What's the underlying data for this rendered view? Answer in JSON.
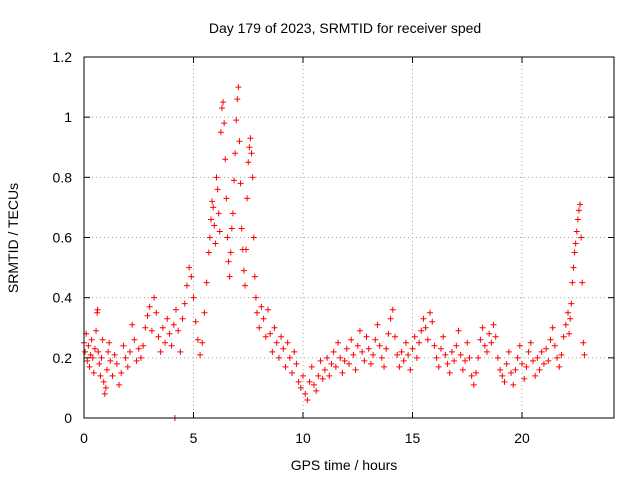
{
  "chart_data": {
    "type": "scatter",
    "title": "Day 179 of 2023, SRMTID for receiver sped",
    "xlabel": "GPS time / hours",
    "ylabel": "SRMTID / TECUs",
    "xlim": [
      0,
      24.2
    ],
    "ylim": [
      0,
      1.2
    ],
    "xticks": [
      0,
      5,
      10,
      15,
      20
    ],
    "xtick_labels": [
      "0",
      "5",
      "10",
      "15",
      "20"
    ],
    "yticks": [
      0,
      0.2,
      0.4,
      0.6,
      0.8,
      1.0,
      1.2
    ],
    "ytick_labels": [
      "0",
      "0.2",
      "0.4",
      "0.6",
      "0.8",
      "1",
      "1.2"
    ],
    "grid": true,
    "marker": "plus",
    "series": [
      {
        "name": "SRMTID",
        "color": "#ff0000",
        "points": [
          [
            0.0,
            0.25
          ],
          [
            0.05,
            0.22
          ],
          [
            0.1,
            0.28
          ],
          [
            0.15,
            0.19
          ],
          [
            0.2,
            0.24
          ],
          [
            0.25,
            0.17
          ],
          [
            0.3,
            0.21
          ],
          [
            0.35,
            0.26
          ],
          [
            0.4,
            0.2
          ],
          [
            0.45,
            0.15
          ],
          [
            0.5,
            0.23
          ],
          [
            0.55,
            0.29
          ],
          [
            0.6,
            0.35
          ],
          [
            0.62,
            0.36
          ],
          [
            0.65,
            0.22
          ],
          [
            0.7,
            0.18
          ],
          [
            0.75,
            0.14
          ],
          [
            0.8,
            0.2
          ],
          [
            0.85,
            0.26
          ],
          [
            0.9,
            0.12
          ],
          [
            0.95,
            0.08
          ],
          [
            1.0,
            0.1
          ],
          [
            1.05,
            0.16
          ],
          [
            1.1,
            0.22
          ],
          [
            1.15,
            0.25
          ],
          [
            1.2,
            0.19
          ],
          [
            1.3,
            0.14
          ],
          [
            1.4,
            0.21
          ],
          [
            1.5,
            0.18
          ],
          [
            1.6,
            0.11
          ],
          [
            1.7,
            0.15
          ],
          [
            1.8,
            0.24
          ],
          [
            1.9,
            0.2
          ],
          [
            2.0,
            0.17
          ],
          [
            2.1,
            0.22
          ],
          [
            2.2,
            0.31
          ],
          [
            2.3,
            0.26
          ],
          [
            2.4,
            0.19
          ],
          [
            2.5,
            0.23
          ],
          [
            2.6,
            0.2
          ],
          [
            2.7,
            0.24
          ],
          [
            2.8,
            0.3
          ],
          [
            2.9,
            0.34
          ],
          [
            3.0,
            0.37
          ],
          [
            3.1,
            0.29
          ],
          [
            3.2,
            0.4
          ],
          [
            3.3,
            0.35
          ],
          [
            3.4,
            0.27
          ],
          [
            3.5,
            0.22
          ],
          [
            3.6,
            0.3
          ],
          [
            3.7,
            0.25
          ],
          [
            3.8,
            0.33
          ],
          [
            3.9,
            0.28
          ],
          [
            4.0,
            0.24
          ],
          [
            4.1,
            0.31
          ],
          [
            4.15,
            0.0
          ],
          [
            4.2,
            0.36
          ],
          [
            4.3,
            0.29
          ],
          [
            4.4,
            0.22
          ],
          [
            4.5,
            0.33
          ],
          [
            4.6,
            0.38
          ],
          [
            4.7,
            0.44
          ],
          [
            4.8,
            0.5
          ],
          [
            4.9,
            0.47
          ],
          [
            5.0,
            0.4
          ],
          [
            5.1,
            0.32
          ],
          [
            5.2,
            0.26
          ],
          [
            5.3,
            0.21
          ],
          [
            5.4,
            0.25
          ],
          [
            5.5,
            0.35
          ],
          [
            5.6,
            0.45
          ],
          [
            5.7,
            0.55
          ],
          [
            5.75,
            0.6
          ],
          [
            5.8,
            0.66
          ],
          [
            5.85,
            0.72
          ],
          [
            5.9,
            0.7
          ],
          [
            5.95,
            0.64
          ],
          [
            6.0,
            0.58
          ],
          [
            6.05,
            0.8
          ],
          [
            6.1,
            0.76
          ],
          [
            6.15,
            0.68
          ],
          [
            6.2,
            0.62
          ],
          [
            6.25,
            0.95
          ],
          [
            6.3,
            1.03
          ],
          [
            6.35,
            1.05
          ],
          [
            6.4,
            0.98
          ],
          [
            6.45,
            0.86
          ],
          [
            6.5,
            0.73
          ],
          [
            6.55,
            0.6
          ],
          [
            6.6,
            0.52
          ],
          [
            6.65,
            0.47
          ],
          [
            6.7,
            0.55
          ],
          [
            6.75,
            0.63
          ],
          [
            6.8,
            0.68
          ],
          [
            6.85,
            0.79
          ],
          [
            6.9,
            0.88
          ],
          [
            6.95,
            0.99
          ],
          [
            7.0,
            1.06
          ],
          [
            7.05,
            1.1
          ],
          [
            7.1,
            0.92
          ],
          [
            7.15,
            0.78
          ],
          [
            7.2,
            0.63
          ],
          [
            7.25,
            0.56
          ],
          [
            7.3,
            0.49
          ],
          [
            7.35,
            0.44
          ],
          [
            7.4,
            0.56
          ],
          [
            7.45,
            0.73
          ],
          [
            7.5,
            0.85
          ],
          [
            7.55,
            0.9
          ],
          [
            7.6,
            0.93
          ],
          [
            7.65,
            0.88
          ],
          [
            7.7,
            0.8
          ],
          [
            7.75,
            0.6
          ],
          [
            7.8,
            0.47
          ],
          [
            7.85,
            0.4
          ],
          [
            7.9,
            0.35
          ],
          [
            8.0,
            0.3
          ],
          [
            8.1,
            0.37
          ],
          [
            8.2,
            0.33
          ],
          [
            8.3,
            0.27
          ],
          [
            8.4,
            0.36
          ],
          [
            8.5,
            0.28
          ],
          [
            8.6,
            0.22
          ],
          [
            8.7,
            0.3
          ],
          [
            8.8,
            0.25
          ],
          [
            8.9,
            0.2
          ],
          [
            9.0,
            0.27
          ],
          [
            9.1,
            0.23
          ],
          [
            9.2,
            0.17
          ],
          [
            9.3,
            0.25
          ],
          [
            9.4,
            0.2
          ],
          [
            9.5,
            0.15
          ],
          [
            9.6,
            0.22
          ],
          [
            9.7,
            0.18
          ],
          [
            9.8,
            0.12
          ],
          [
            9.9,
            0.1
          ],
          [
            10.0,
            0.14
          ],
          [
            10.1,
            0.08
          ],
          [
            10.2,
            0.06
          ],
          [
            10.3,
            0.12
          ],
          [
            10.4,
            0.17
          ],
          [
            10.5,
            0.11
          ],
          [
            10.6,
            0.09
          ],
          [
            10.7,
            0.14
          ],
          [
            10.8,
            0.19
          ],
          [
            10.9,
            0.13
          ],
          [
            11.0,
            0.16
          ],
          [
            11.1,
            0.2
          ],
          [
            11.2,
            0.14
          ],
          [
            11.3,
            0.18
          ],
          [
            11.4,
            0.22
          ],
          [
            11.5,
            0.17
          ],
          [
            11.6,
            0.25
          ],
          [
            11.7,
            0.2
          ],
          [
            11.8,
            0.15
          ],
          [
            11.9,
            0.19
          ],
          [
            12.0,
            0.23
          ],
          [
            12.1,
            0.18
          ],
          [
            12.2,
            0.26
          ],
          [
            12.3,
            0.21
          ],
          [
            12.4,
            0.16
          ],
          [
            12.5,
            0.24
          ],
          [
            12.6,
            0.29
          ],
          [
            12.7,
            0.22
          ],
          [
            12.8,
            0.19
          ],
          [
            12.9,
            0.27
          ],
          [
            13.0,
            0.23
          ],
          [
            13.1,
            0.18
          ],
          [
            13.2,
            0.21
          ],
          [
            13.3,
            0.26
          ],
          [
            13.4,
            0.31
          ],
          [
            13.5,
            0.24
          ],
          [
            13.6,
            0.2
          ],
          [
            13.7,
            0.17
          ],
          [
            13.8,
            0.23
          ],
          [
            13.9,
            0.28
          ],
          [
            14.0,
            0.33
          ],
          [
            14.1,
            0.36
          ],
          [
            14.2,
            0.27
          ],
          [
            14.3,
            0.21
          ],
          [
            14.4,
            0.17
          ],
          [
            14.5,
            0.22
          ],
          [
            14.6,
            0.19
          ],
          [
            14.7,
            0.25
          ],
          [
            14.8,
            0.21
          ],
          [
            14.9,
            0.16
          ],
          [
            15.0,
            0.23
          ],
          [
            15.1,
            0.27
          ],
          [
            15.2,
            0.2
          ],
          [
            15.3,
            0.25
          ],
          [
            15.4,
            0.29
          ],
          [
            15.5,
            0.33
          ],
          [
            15.6,
            0.3
          ],
          [
            15.7,
            0.26
          ],
          [
            15.8,
            0.35
          ],
          [
            15.9,
            0.32
          ],
          [
            16.0,
            0.24
          ],
          [
            16.1,
            0.2
          ],
          [
            16.2,
            0.17
          ],
          [
            16.3,
            0.23
          ],
          [
            16.4,
            0.27
          ],
          [
            16.5,
            0.21
          ],
          [
            16.6,
            0.18
          ],
          [
            16.7,
            0.15
          ],
          [
            16.8,
            0.22
          ],
          [
            16.9,
            0.19
          ],
          [
            17.0,
            0.24
          ],
          [
            17.1,
            0.29
          ],
          [
            17.2,
            0.21
          ],
          [
            17.3,
            0.16
          ],
          [
            17.4,
            0.19
          ],
          [
            17.5,
            0.25
          ],
          [
            17.6,
            0.2
          ],
          [
            17.7,
            0.14
          ],
          [
            17.8,
            0.11
          ],
          [
            17.9,
            0.15
          ],
          [
            18.0,
            0.2
          ],
          [
            18.1,
            0.26
          ],
          [
            18.2,
            0.3
          ],
          [
            18.3,
            0.24
          ],
          [
            18.4,
            0.22
          ],
          [
            18.5,
            0.28
          ],
          [
            18.6,
            0.25
          ],
          [
            18.7,
            0.31
          ],
          [
            18.8,
            0.27
          ],
          [
            18.9,
            0.2
          ],
          [
            19.0,
            0.16
          ],
          [
            19.1,
            0.14
          ],
          [
            19.2,
            0.12
          ],
          [
            19.3,
            0.18
          ],
          [
            19.4,
            0.22
          ],
          [
            19.5,
            0.15
          ],
          [
            19.6,
            0.11
          ],
          [
            19.7,
            0.16
          ],
          [
            19.8,
            0.2
          ],
          [
            19.9,
            0.24
          ],
          [
            20.0,
            0.18
          ],
          [
            20.1,
            0.13
          ],
          [
            20.2,
            0.17
          ],
          [
            20.3,
            0.22
          ],
          [
            20.4,
            0.25
          ],
          [
            20.5,
            0.19
          ],
          [
            20.6,
            0.14
          ],
          [
            20.7,
            0.2
          ],
          [
            20.8,
            0.16
          ],
          [
            20.9,
            0.22
          ],
          [
            21.0,
            0.18
          ],
          [
            21.1,
            0.23
          ],
          [
            21.2,
            0.19
          ],
          [
            21.3,
            0.26
          ],
          [
            21.4,
            0.3
          ],
          [
            21.5,
            0.24
          ],
          [
            21.6,
            0.2
          ],
          [
            21.7,
            0.17
          ],
          [
            21.8,
            0.21
          ],
          [
            21.9,
            0.27
          ],
          [
            22.0,
            0.31
          ],
          [
            22.1,
            0.35
          ],
          [
            22.15,
            0.28
          ],
          [
            22.2,
            0.33
          ],
          [
            22.25,
            0.38
          ],
          [
            22.3,
            0.45
          ],
          [
            22.35,
            0.5
          ],
          [
            22.4,
            0.55
          ],
          [
            22.45,
            0.58
          ],
          [
            22.5,
            0.62
          ],
          [
            22.55,
            0.66
          ],
          [
            22.6,
            0.69
          ],
          [
            22.65,
            0.71
          ],
          [
            22.7,
            0.6
          ],
          [
            22.75,
            0.45
          ],
          [
            22.8,
            0.25
          ],
          [
            22.85,
            0.21
          ]
        ]
      }
    ]
  }
}
